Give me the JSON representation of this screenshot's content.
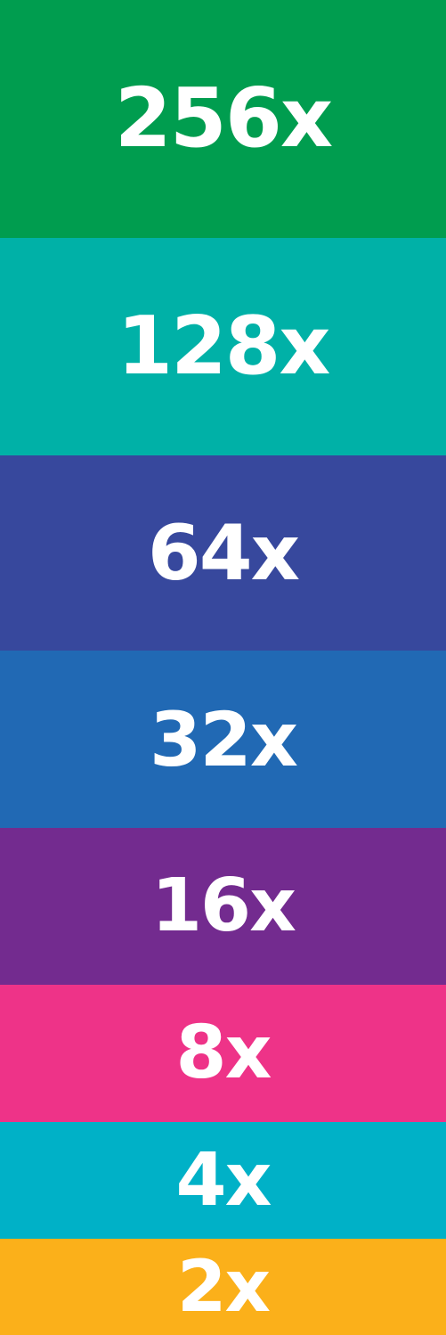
{
  "bands": [
    {
      "label": "256x",
      "color": "#009D4F"
    },
    {
      "label": "128x",
      "color": "#00B1A7"
    },
    {
      "label": "64x",
      "color": "#37489D"
    },
    {
      "label": "32x",
      "color": "#2169B4"
    },
    {
      "label": "16x",
      "color": "#732B8F"
    },
    {
      "label": "8x",
      "color": "#EE3388"
    },
    {
      "label": "4x",
      "color": "#00B1C7"
    },
    {
      "label": "2x",
      "color": "#FBB01A"
    }
  ]
}
